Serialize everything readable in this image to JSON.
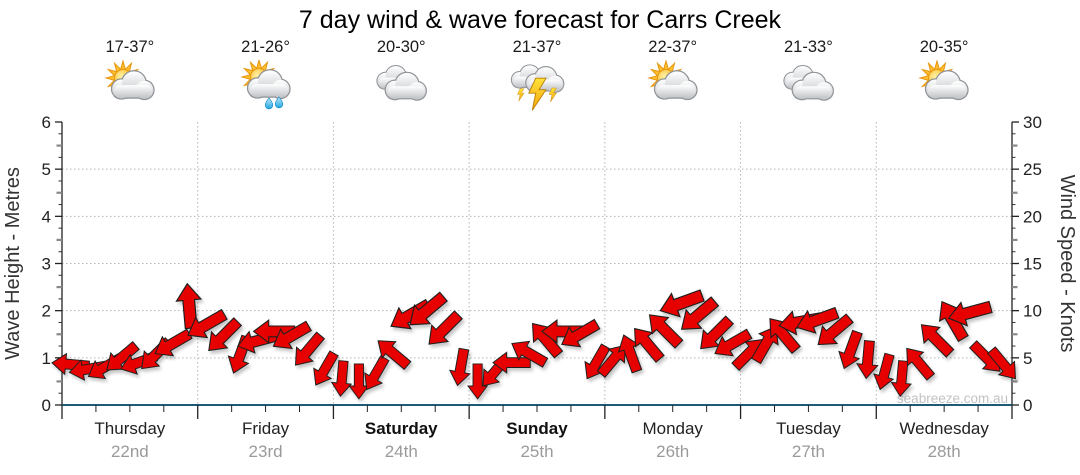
{
  "title": "7 day wind & wave forecast for Carrs Creek",
  "watermark": "seabreeze.com.au",
  "axes": {
    "left_title": "Wave Height - Metres",
    "right_title": "Wind Speed - Knots",
    "left_tick_labels": [
      0,
      1,
      2,
      3,
      4,
      5,
      6
    ],
    "right_tick_labels": [
      0,
      5,
      10,
      15,
      20,
      25,
      30
    ]
  },
  "days": [
    {
      "name": "Thursday",
      "date": "22nd",
      "temp": "17-37°",
      "icon": "partly-cloudy",
      "bold": false
    },
    {
      "name": "Friday",
      "date": "23rd",
      "temp": "21-26°",
      "icon": "partly-cloudy-showers",
      "bold": false
    },
    {
      "name": "Saturday",
      "date": "24th",
      "temp": "20-30°",
      "icon": "cloudy",
      "bold": true
    },
    {
      "name": "Sunday",
      "date": "25th",
      "temp": "21-37°",
      "icon": "thunderstorm",
      "bold": true
    },
    {
      "name": "Monday",
      "date": "26th",
      "temp": "22-37°",
      "icon": "partly-cloudy",
      "bold": false
    },
    {
      "name": "Tuesday",
      "date": "27th",
      "temp": "21-33°",
      "icon": "cloudy",
      "bold": false
    },
    {
      "name": "Wednesday",
      "date": "28th",
      "temp": "20-35°",
      "icon": "partly-cloudy",
      "bold": false
    }
  ],
  "chart_data": {
    "type": "wind-arrow-series",
    "title": "7 day wind & wave forecast for Carrs Creek",
    "ylabel_left": "Wave Height - Metres",
    "ylabel_right": "Wind Speed - Knots",
    "wave_axis_range": [
      0,
      6
    ],
    "wind_axis_range": [
      0,
      30
    ],
    "grid": "dotted",
    "categories": [
      "Thursday 22nd",
      "Friday 23rd",
      "Saturday 24th",
      "Sunday 25th",
      "Monday 26th",
      "Tuesday 27th",
      "Wednesday 28th"
    ],
    "points_per_day": 8,
    "wind_speed_knots": [
      4.3,
      3.8,
      4.0,
      5.0,
      4.5,
      5.3,
      6.5,
      10.5,
      8.5,
      7.3,
      5.3,
      6.8,
      7.8,
      7.3,
      5.8,
      3.8,
      2.8,
      2.5,
      3.3,
      5.5,
      9.5,
      10.0,
      8.0,
      4.0,
      2.5,
      3.5,
      4.5,
      5.5,
      7.0,
      7.8,
      7.5,
      4.5,
      4.8,
      5.5,
      6.5,
      8.0,
      10.8,
      9.5,
      7.5,
      6.5,
      5.5,
      6.5,
      7.5,
      8.8,
      9.0,
      7.8,
      5.8,
      4.8,
      3.5,
      2.8,
      4.5,
      7.0,
      9.0,
      9.8,
      5.0,
      4.3
    ],
    "wind_dir_deg": [
      185,
      170,
      150,
      140,
      160,
      135,
      150,
      265,
      150,
      135,
      110,
      165,
      180,
      150,
      130,
      120,
      95,
      90,
      120,
      220,
      150,
      140,
      135,
      100,
      90,
      130,
      180,
      210,
      230,
      180,
      150,
      120,
      310,
      250,
      230,
      225,
      160,
      140,
      135,
      150,
      315,
      300,
      230,
      170,
      160,
      140,
      110,
      95,
      105,
      95,
      230,
      225,
      240,
      165,
      45,
      50
    ],
    "colors": {
      "arrow": "#e60000",
      "arrow_outline": "#1f1f1f",
      "axis": "#222222",
      "axis_bottom": "#1d5a78",
      "grid": "#b5b5b5",
      "tick_label": "#222222",
      "watermark": "#c2c2c2"
    }
  }
}
